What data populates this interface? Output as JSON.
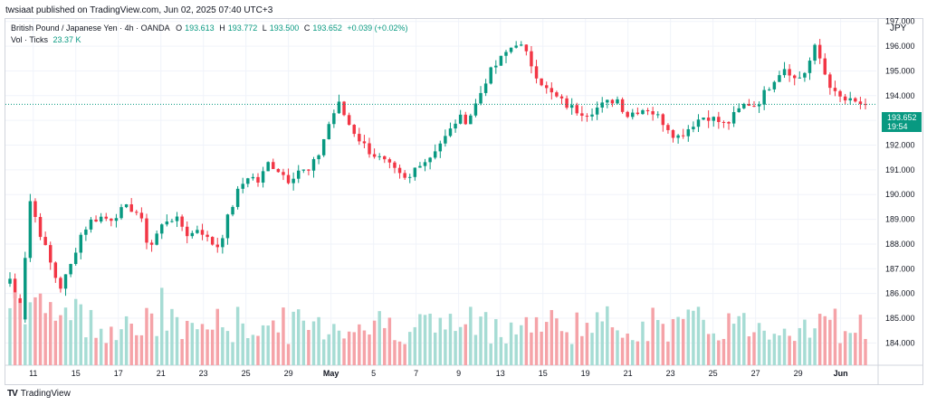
{
  "header": {
    "published": "twsiaat published on TradingView.com, Jun 02, 2025 07:40 UTC+3"
  },
  "legend": {
    "symbol": "British Pound / Japanese Yen · 4h · OANDA",
    "open_key": "O",
    "open": "193.613",
    "high_key": "H",
    "high": "193.772",
    "low_key": "L",
    "low": "193.500",
    "close_key": "C",
    "close": "193.652",
    "change": "+0.039 (+0.02%)",
    "vol_label": "Vol · Ticks",
    "vol_value": "23.37 K"
  },
  "price_axis": {
    "currency": "JPY",
    "current_price": "193.652",
    "countdown": "19:54"
  },
  "footer": {
    "brand": "TradingView",
    "logo_icon": "tradingview-logo-icon"
  },
  "colors": {
    "up": "#089981",
    "down": "#f23645",
    "up_vol": "#a6dcd4",
    "down_vol": "#f5a3a8",
    "grid": "#f0f3fa"
  },
  "chart_data": {
    "type": "candlestick",
    "symbol": "GBPJPY",
    "interval": "4h",
    "ylim": [
      183.1,
      197.1
    ],
    "y_ticks": [
      "197.000",
      "196.000",
      "195.000",
      "194.000",
      "193.000",
      "192.000",
      "191.000",
      "190.000",
      "189.000",
      "188.000",
      "187.000",
      "186.000",
      "185.000",
      "184.000"
    ],
    "x_ticks": [
      {
        "label": "11",
        "pos": 0.036
      },
      {
        "label": "15",
        "pos": 0.091
      },
      {
        "label": "17",
        "pos": 0.146
      },
      {
        "label": "21",
        "pos": 0.201
      },
      {
        "label": "23",
        "pos": 0.256
      },
      {
        "label": "25",
        "pos": 0.311
      },
      {
        "label": "29",
        "pos": 0.366
      },
      {
        "label": "May",
        "pos": 0.421
      },
      {
        "label": "5",
        "pos": 0.476
      },
      {
        "label": "7",
        "pos": 0.531
      },
      {
        "label": "9",
        "pos": 0.586
      },
      {
        "label": "13",
        "pos": 0.64
      },
      {
        "label": "15",
        "pos": 0.695
      },
      {
        "label": "19",
        "pos": 0.75
      },
      {
        "label": "21",
        "pos": 0.805
      },
      {
        "label": "23",
        "pos": 0.86
      },
      {
        "label": "25",
        "pos": 0.915
      },
      {
        "label": "27",
        "pos": 0.97
      },
      {
        "label": "29",
        "pos": 1.025
      },
      {
        "label": "Jun",
        "pos": 1.08
      }
    ],
    "close_path": [
      186.6,
      185.0,
      189.8,
      188.5,
      187.3,
      186.2,
      187.0,
      188.3,
      188.9,
      189.1,
      189.0,
      189.3,
      189.5,
      189.2,
      187.8,
      188.6,
      189.1,
      188.9,
      188.3,
      188.7,
      188.1,
      187.9,
      189.2,
      190.2,
      190.8,
      190.5,
      191.3,
      191.0,
      190.6,
      191.0,
      190.9,
      191.6,
      192.8,
      193.7,
      192.9,
      192.3,
      191.8,
      191.5,
      191.2,
      190.8,
      190.5,
      191.3,
      191.4,
      192.0,
      192.4,
      193.1,
      193.0,
      193.8,
      194.8,
      195.3,
      195.8,
      196.2,
      195.6,
      194.8,
      194.2,
      193.9,
      193.6,
      193.4,
      193.3,
      193.5,
      193.7,
      193.9,
      193.2,
      193.4,
      193.5,
      193.2,
      192.8,
      192.3,
      192.6,
      193.0,
      193.2,
      193.0,
      192.8,
      193.3,
      193.7,
      193.6,
      194.2,
      194.8,
      195.2,
      194.6,
      195.0,
      196.0,
      194.8,
      194.0,
      193.8,
      193.7,
      193.65
    ],
    "volume_max_ticks": 48000
  }
}
